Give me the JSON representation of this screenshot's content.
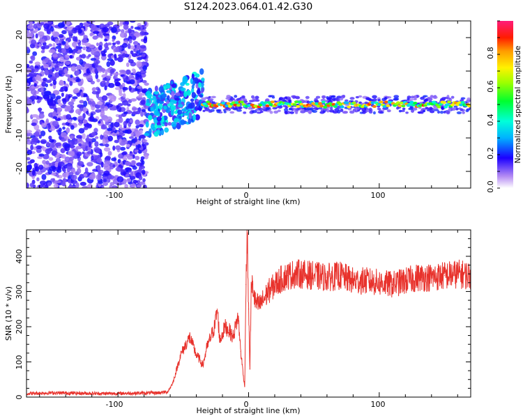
{
  "title": "S124.2023.064.01.42.G30",
  "chart_data": [
    {
      "type": "heatmap",
      "xlabel": "Height of straight line (km)",
      "ylabel": "Frequency (Hz)",
      "xlim": [
        -170,
        170
      ],
      "ylim": [
        -25,
        25
      ],
      "xticks": [
        "-100",
        "0",
        "100"
      ],
      "yticks": [
        "20",
        "10",
        "0",
        "-10",
        "-20"
      ],
      "colorbar": {
        "label": "Normalized spectral amplitude",
        "range": [
          0,
          1
        ],
        "ticks": [
          "0.0",
          "0.2",
          "0.4",
          "0.6",
          "0.8"
        ]
      },
      "features": {
        "noise_region_x": [
          -170,
          -78
        ],
        "transition_region_x": [
          -78,
          -35
        ],
        "carrier_band_x": [
          -35,
          170
        ],
        "carrier_frequency_hz": 0
      }
    },
    {
      "type": "line",
      "xlabel": "Height of straight line (km)",
      "ylabel": "SNR (10 * v/v)",
      "xlim": [
        -170,
        170
      ],
      "ylim": [
        0,
        475
      ],
      "xticks": [
        "-100",
        "0",
        "100"
      ],
      "yticks": [
        "0",
        "100",
        "200",
        "300",
        "400"
      ],
      "series": [
        {
          "color": "#e8322c",
          "x": [
            -170,
            -150,
            -130,
            -110,
            -90,
            -70,
            -62,
            -58,
            -55,
            -52,
            -48,
            -45,
            -42,
            -40,
            -38,
            -35,
            -32,
            -29,
            -26,
            -24,
            -22,
            -20,
            -18,
            -15,
            -12,
            -10,
            -8,
            -6,
            -4,
            -3,
            -2,
            -1,
            0,
            1,
            2,
            3,
            5,
            8,
            10,
            12,
            15,
            18,
            20,
            25,
            30,
            35,
            40,
            50,
            60,
            70,
            80,
            90,
            100,
            110,
            120,
            130,
            140,
            150,
            160,
            170
          ],
          "y": [
            10,
            12,
            11,
            10,
            11,
            12,
            15,
            40,
            80,
            120,
            150,
            170,
            140,
            120,
            110,
            90,
            140,
            170,
            200,
            250,
            160,
            180,
            200,
            190,
            170,
            200,
            230,
            130,
            60,
            30,
            320,
            460,
            250,
            80,
            300,
            320,
            270,
            260,
            270,
            280,
            300,
            310,
            320,
            335,
            345,
            350,
            350,
            345,
            340,
            345,
            330,
            330,
            325,
            320,
            330,
            340,
            340,
            345,
            350,
            345
          ]
        }
      ]
    }
  ]
}
